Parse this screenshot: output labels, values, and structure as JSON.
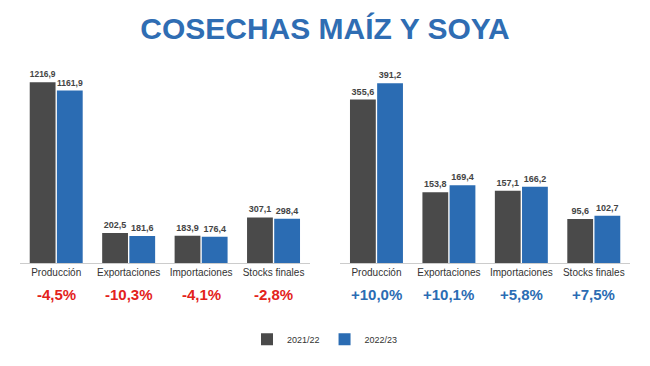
{
  "title": "COSECHAS MAÍZ Y SOYA",
  "chart_data": [
    {
      "type": "bar",
      "categories": [
        "Producción",
        "Exportaciones",
        "Importaciones",
        "Stocks finales"
      ],
      "series": [
        {
          "name": "2021/22",
          "color": "#4a4a4a",
          "values": [
            1216.9,
            202.5,
            183.9,
            307.1
          ],
          "value_labels": [
            "1216,9",
            "202,5",
            "183,9",
            "307,1"
          ]
        },
        {
          "name": "2022/23",
          "color": "#2b6cb3",
          "values": [
            1161.9,
            181.6,
            176.4,
            298.4
          ],
          "value_labels": [
            "1161,9",
            "181,6",
            "176,4",
            "298,4"
          ]
        }
      ],
      "annotations": [
        "-4,5%",
        "-10,3%",
        "-4,1%",
        "-2,8%"
      ],
      "ylim": [
        0,
        1300
      ],
      "data_labels": true,
      "tick_labels": "x",
      "grid": false,
      "legend": "bottom"
    },
    {
      "type": "bar",
      "categories": [
        "Producción",
        "Exportaciones",
        "Importaciones",
        "Stocks finales"
      ],
      "series": [
        {
          "name": "2021/22",
          "color": "#4a4a4a",
          "values": [
            355.6,
            153.8,
            157.1,
            95.6
          ],
          "value_labels": [
            "355,6",
            "153,8",
            "157,1",
            "95,6"
          ]
        },
        {
          "name": "2022/23",
          "color": "#2b6cb3",
          "values": [
            391.2,
            169.4,
            166.2,
            102.7
          ],
          "value_labels": [
            "391,2",
            "169,4",
            "166,2",
            "102,7"
          ]
        }
      ],
      "annotations": [
        "+10,0%",
        "+10,1%",
        "+5,8%",
        "+7,5%"
      ],
      "ylim": [
        0,
        420
      ],
      "data_labels": true,
      "tick_labels": "x",
      "grid": false,
      "legend": "bottom"
    }
  ]
}
